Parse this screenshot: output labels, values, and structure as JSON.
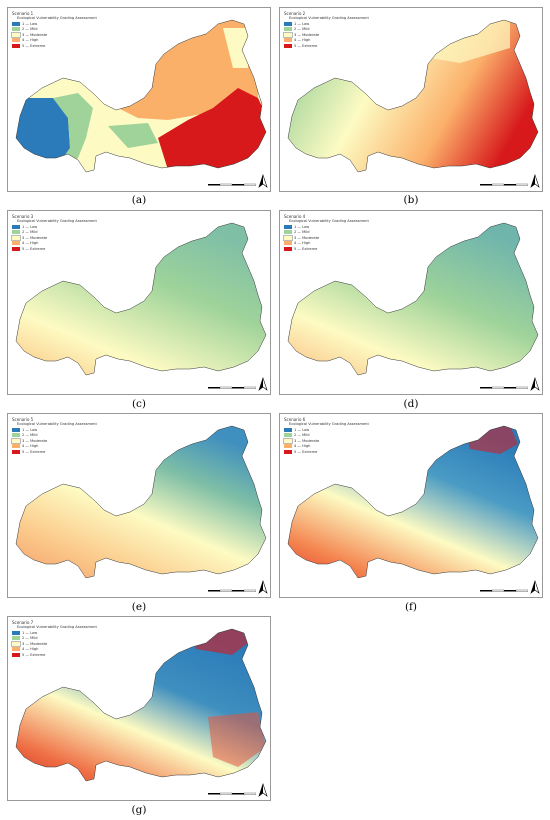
{
  "legend_title": "Ecological Vulnerability Grading Assessment",
  "legend_classes": [
    {
      "label": "1 — Low",
      "color": "#2b7bba"
    },
    {
      "label": "2 — Mild",
      "color": "#9fd39a"
    },
    {
      "label": "3 — Moderate",
      "color": "#fdfbc3"
    },
    {
      "label": "4 — High",
      "color": "#fbb06a"
    },
    {
      "label": "5 — Extreme",
      "color": "#d7191c"
    }
  ],
  "panels": [
    {
      "scenario": "Scenario 1",
      "caption": "(a)"
    },
    {
      "scenario": "Scenario 2",
      "caption": "(b)"
    },
    {
      "scenario": "Scenario 3",
      "caption": "(c)"
    },
    {
      "scenario": "Scenario 4",
      "caption": "(d)"
    },
    {
      "scenario": "Scenario 5",
      "caption": "(e)"
    },
    {
      "scenario": "Scenario 6",
      "caption": "(f)"
    },
    {
      "scenario": "Scenario 7",
      "caption": "(g)"
    }
  ]
}
